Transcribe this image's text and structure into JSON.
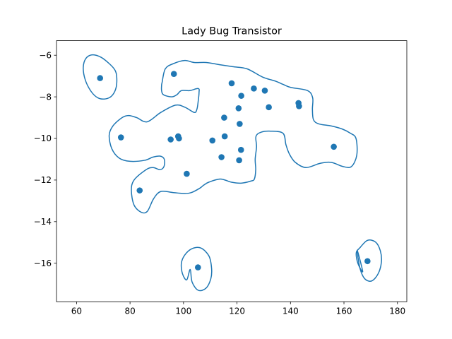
{
  "colors": {
    "series": "#1f77b4",
    "axes": "#000000",
    "background": "#ffffff"
  },
  "chart_data": {
    "type": "scatter",
    "title": "Lady Bug Transistor",
    "xlabel": "",
    "ylabel": "",
    "xlim": [
      52.5,
      183.5
    ],
    "ylim": [
      -17.85,
      -5.3
    ],
    "xticks": [
      60,
      80,
      100,
      120,
      140,
      160,
      180
    ],
    "yticks": [
      -16,
      -14,
      -12,
      -10,
      -8,
      -6
    ],
    "xtick_labels": [
      "60",
      "80",
      "100",
      "120",
      "140",
      "160",
      "180"
    ],
    "ytick_labels": [
      "−16",
      "−14",
      "−12",
      "−10",
      "−8",
      "−6"
    ],
    "grid": false,
    "points": [
      {
        "x": 68.8,
        "y": -7.1
      },
      {
        "x": 96.4,
        "y": -6.9
      },
      {
        "x": 118.0,
        "y": -7.35
      },
      {
        "x": 126.3,
        "y": -7.6
      },
      {
        "x": 130.4,
        "y": -7.7
      },
      {
        "x": 121.6,
        "y": -7.95
      },
      {
        "x": 143.0,
        "y": -8.3
      },
      {
        "x": 143.2,
        "y": -8.45
      },
      {
        "x": 131.9,
        "y": -8.5
      },
      {
        "x": 120.6,
        "y": -8.55
      },
      {
        "x": 115.2,
        "y": -9.0
      },
      {
        "x": 121.0,
        "y": -9.3
      },
      {
        "x": 76.6,
        "y": -9.95
      },
      {
        "x": 98.0,
        "y": -9.9
      },
      {
        "x": 98.3,
        "y": -10.0
      },
      {
        "x": 95.2,
        "y": -10.05
      },
      {
        "x": 115.4,
        "y": -9.9
      },
      {
        "x": 110.8,
        "y": -10.1
      },
      {
        "x": 156.2,
        "y": -10.4
      },
      {
        "x": 121.5,
        "y": -10.55
      },
      {
        "x": 114.2,
        "y": -10.9
      },
      {
        "x": 120.8,
        "y": -11.05
      },
      {
        "x": 101.2,
        "y": -11.7
      },
      {
        "x": 83.6,
        "y": -12.5
      },
      {
        "x": 105.4,
        "y": -16.2
      },
      {
        "x": 168.8,
        "y": -15.9
      }
    ],
    "contours": [
      {
        "points": [
          [
            75,
            -7.0
          ],
          [
            74.8,
            -7.55
          ],
          [
            73.2,
            -7.95
          ],
          [
            70.8,
            -8.1
          ],
          [
            68,
            -8.05
          ],
          [
            65.5,
            -7.75
          ],
          [
            63.3,
            -7.2
          ],
          [
            62.5,
            -6.6
          ],
          [
            63.5,
            -6.15
          ],
          [
            66,
            -5.98
          ],
          [
            69.2,
            -6.1
          ],
          [
            72.2,
            -6.4
          ],
          [
            74.3,
            -6.7
          ],
          [
            75,
            -7.0
          ]
        ]
      },
      {
        "points": [
          [
            102.5,
            -16.3
          ],
          [
            103.2,
            -16.9
          ],
          [
            105.5,
            -17.3
          ],
          [
            108.4,
            -17.2
          ],
          [
            110.2,
            -16.75
          ],
          [
            110.5,
            -16.25
          ],
          [
            109.5,
            -15.65
          ],
          [
            106.5,
            -15.27
          ],
          [
            103.2,
            -15.3
          ],
          [
            100.5,
            -15.6
          ],
          [
            99.2,
            -16.0
          ],
          [
            99.6,
            -16.5
          ],
          [
            101.2,
            -16.8
          ],
          [
            102.5,
            -16.3
          ]
        ]
      },
      {
        "points": [
          [
            165,
            -15.4
          ],
          [
            166,
            -16.25
          ],
          [
            167.8,
            -16.75
          ],
          [
            170.4,
            -16.85
          ],
          [
            172.8,
            -16.5
          ],
          [
            174,
            -15.95
          ],
          [
            173.6,
            -15.4
          ],
          [
            171.8,
            -14.98
          ],
          [
            168.8,
            -14.9
          ],
          [
            166,
            -15.25
          ],
          [
            164.6,
            -15.5
          ],
          [
            165.2,
            -16.0
          ],
          [
            167,
            -16.4
          ],
          [
            165,
            -15.4
          ]
        ]
      },
      {
        "points": [
          [
            92,
            -7.3
          ],
          [
            91.8,
            -7.45
          ],
          [
            91.8,
            -7.7
          ],
          [
            92.5,
            -7.9
          ],
          [
            95.5,
            -8.0
          ],
          [
            97.5,
            -7.9
          ],
          [
            99.2,
            -7.7
          ],
          [
            102.3,
            -7.7
          ],
          [
            105.5,
            -7.6
          ],
          [
            105.8,
            -7.8
          ],
          [
            105.5,
            -8.2
          ],
          [
            105.0,
            -8.6
          ],
          [
            104.0,
            -8.75
          ],
          [
            100.5,
            -8.5
          ],
          [
            97.0,
            -8.4
          ],
          [
            91.5,
            -8.75
          ],
          [
            86.4,
            -9.2
          ],
          [
            82.5,
            -9.0
          ],
          [
            79.5,
            -8.9
          ],
          [
            77.0,
            -9.0
          ],
          [
            73.6,
            -9.4
          ],
          [
            72.2,
            -9.85
          ],
          [
            73.2,
            -10.5
          ],
          [
            76.0,
            -10.95
          ],
          [
            80.0,
            -11.1
          ],
          [
            85.5,
            -11.05
          ],
          [
            88.5,
            -10.9
          ],
          [
            91.2,
            -10.85
          ],
          [
            92.8,
            -11.0
          ],
          [
            92.7,
            -11.35
          ],
          [
            91.2,
            -11.5
          ],
          [
            88.6,
            -11.4
          ],
          [
            86.0,
            -11.5
          ],
          [
            81.5,
            -12.0
          ],
          [
            80.5,
            -12.5
          ],
          [
            81.5,
            -13.2
          ],
          [
            84.2,
            -13.55
          ],
          [
            86.5,
            -13.5
          ],
          [
            88.8,
            -12.9
          ],
          [
            91.5,
            -12.55
          ],
          [
            96.0,
            -12.6
          ],
          [
            100.5,
            -12.65
          ],
          [
            103.0,
            -12.6
          ],
          [
            106.0,
            -12.4
          ],
          [
            107.5,
            -12.25
          ],
          [
            109.5,
            -12.1
          ],
          [
            113.8,
            -11.95
          ],
          [
            117.8,
            -12.1
          ],
          [
            121.5,
            -12.15
          ],
          [
            125.2,
            -12.05
          ],
          [
            126.5,
            -11.95
          ],
          [
            127.0,
            -11.5
          ],
          [
            126.8,
            -11.0
          ],
          [
            127.3,
            -10.4
          ],
          [
            127.1,
            -9.9
          ],
          [
            129.0,
            -9.7
          ],
          [
            132.5,
            -9.65
          ],
          [
            137.2,
            -9.75
          ],
          [
            138.3,
            -10.3
          ],
          [
            139.6,
            -10.75
          ],
          [
            141.8,
            -11.15
          ],
          [
            145.8,
            -11.4
          ],
          [
            151.0,
            -11.2
          ],
          [
            155.2,
            -11.15
          ],
          [
            159.6,
            -11.35
          ],
          [
            162.8,
            -11.35
          ],
          [
            164.8,
            -10.8
          ],
          [
            164.5,
            -10.0
          ],
          [
            162.4,
            -9.75
          ],
          [
            159.4,
            -9.55
          ],
          [
            155.3,
            -9.4
          ],
          [
            150.6,
            -9.3
          ],
          [
            148.6,
            -9.1
          ],
          [
            148.2,
            -8.6
          ],
          [
            148.3,
            -8.05
          ],
          [
            146.4,
            -7.7
          ],
          [
            140.2,
            -7.55
          ],
          [
            137.2,
            -7.4
          ],
          [
            134.5,
            -7.25
          ],
          [
            129.6,
            -7.05
          ],
          [
            123.7,
            -6.65
          ],
          [
            118.4,
            -6.55
          ],
          [
            113.3,
            -6.45
          ],
          [
            108.5,
            -6.35
          ],
          [
            104.0,
            -6.35
          ],
          [
            100.5,
            -6.25
          ],
          [
            96.3,
            -6.4
          ],
          [
            93.2,
            -6.65
          ],
          [
            92,
            -7.3
          ]
        ]
      }
    ]
  }
}
